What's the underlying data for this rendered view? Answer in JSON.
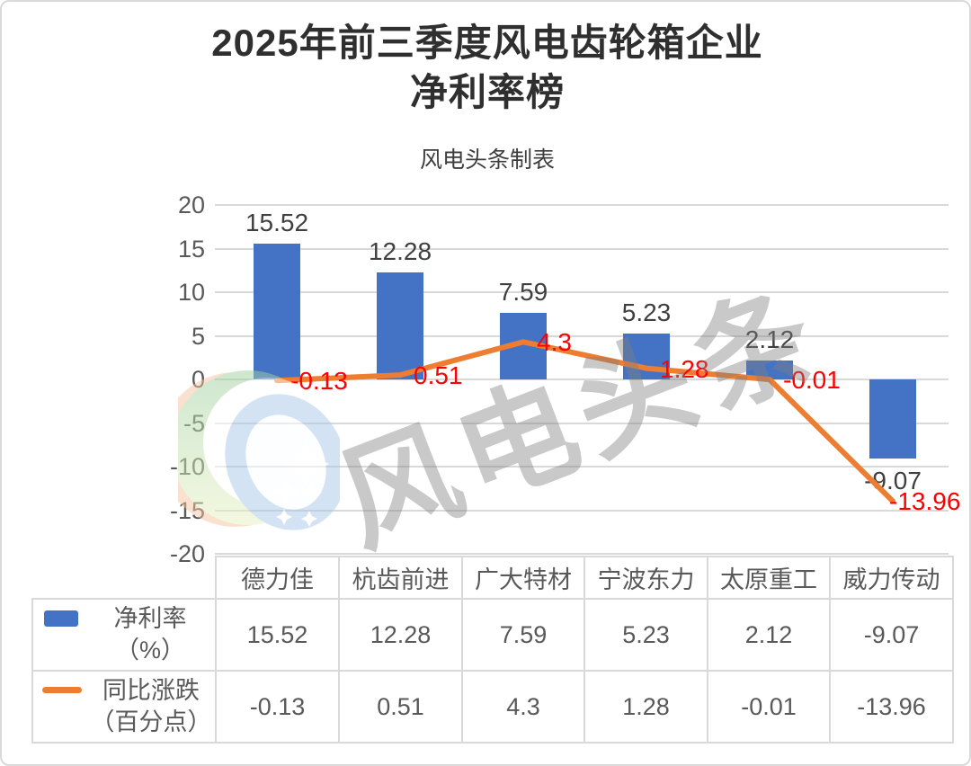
{
  "title": {
    "line1": "2025年前三季度风电齿轮箱企业",
    "line2": "净利率榜"
  },
  "subtitle": "风电头条制表",
  "watermark_text": "风电头条",
  "colors": {
    "bar": "#4472C4",
    "line": "#ED7D31",
    "red_label": "#FE0000",
    "black_label": "#3F3F3F",
    "axis_text": "#595959",
    "gridline": "#D9D9D9",
    "title_text": "#2F2F2F",
    "watermark": "#808080"
  },
  "chart_data": {
    "type": "bar",
    "subtype": "bar+line combo",
    "categories": [
      "德力佳",
      "杭齿前进",
      "广大特材",
      "宁波东力",
      "太原重工",
      "威力传动"
    ],
    "series": [
      {
        "name": "净利率（%）",
        "type": "bar",
        "color": "#4472C4",
        "values": [
          15.52,
          12.28,
          7.59,
          5.23,
          2.12,
          -9.07
        ]
      },
      {
        "name": "同比涨跌（百分点）",
        "type": "line",
        "color": "#ED7D31",
        "values": [
          -0.13,
          0.51,
          4.3,
          1.28,
          -0.01,
          -13.96
        ]
      }
    ],
    "title": "2025年前三季度风电齿轮箱企业净利率榜",
    "xlabel": "",
    "ylabel": "",
    "ylim": [
      -20,
      20
    ],
    "y_ticks": [
      20,
      15,
      10,
      5,
      0,
      -5,
      -10,
      -15,
      -20
    ],
    "grid": "horizontal",
    "legend_position": "table-left"
  },
  "table": {
    "headers": [
      "德力佳",
      "杭齿前进",
      "广大特材",
      "宁波东力",
      "太原重工",
      "威力传动"
    ],
    "rows": [
      {
        "legend_line1": "净利率",
        "legend_line2": "（%）",
        "swatch": "bar-swatch",
        "values": [
          "15.52",
          "12.28",
          "7.59",
          "5.23",
          "2.12",
          "-9.07"
        ]
      },
      {
        "legend_line1": "同比涨跌",
        "legend_line2": "（百分点）",
        "swatch": "line-swatch",
        "values": [
          "-0.13",
          "0.51",
          "4.3",
          "1.28",
          "-0.01",
          "-13.96"
        ]
      }
    ]
  }
}
